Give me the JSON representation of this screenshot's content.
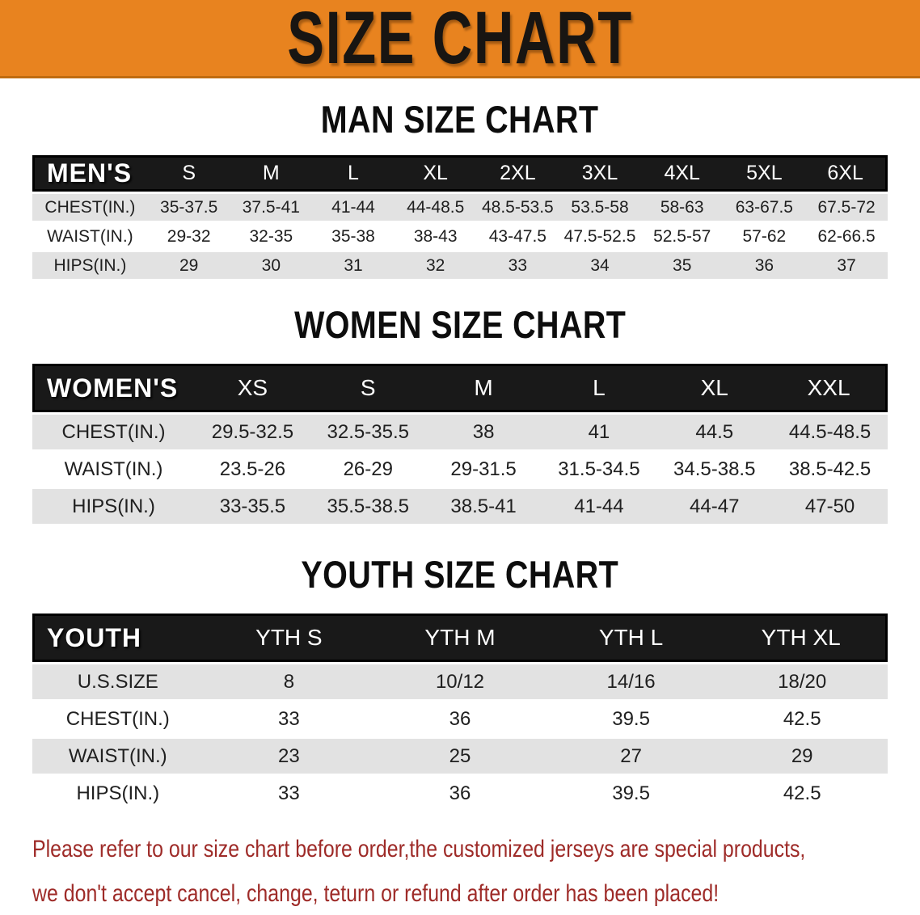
{
  "banner": {
    "title": "SIZE CHART",
    "bg_color": "#e8831f",
    "text_color": "#181512"
  },
  "tables": [
    {
      "id": "men",
      "title": "MAN SIZE CHART",
      "header_label": "MEN'S",
      "columns": [
        "S",
        "M",
        "L",
        "XL",
        "2XL",
        "3XL",
        "4XL",
        "5XL",
        "6XL"
      ],
      "rows": [
        {
          "label": "CHEST(IN.)",
          "values": [
            "35-37.5",
            "37.5-41",
            "41-44",
            "44-48.5",
            "48.5-53.5",
            "53.5-58",
            "58-63",
            "63-67.5",
            "67.5-72"
          ]
        },
        {
          "label": "WAIST(IN.)",
          "values": [
            "29-32",
            "32-35",
            "35-38",
            "38-43",
            "43-47.5",
            "47.5-52.5",
            "52.5-57",
            "57-62",
            "62-66.5"
          ]
        },
        {
          "label": "HIPS(IN.)",
          "values": [
            "29",
            "30",
            "31",
            "32",
            "33",
            "34",
            "35",
            "36",
            "37"
          ]
        }
      ]
    },
    {
      "id": "women",
      "title": "WOMEN SIZE CHART",
      "header_label": "WOMEN'S",
      "columns": [
        "XS",
        "S",
        "M",
        "L",
        "XL",
        "XXL"
      ],
      "rows": [
        {
          "label": "CHEST(IN.)",
          "values": [
            "29.5-32.5",
            "32.5-35.5",
            "38",
            "41",
            "44.5",
            "44.5-48.5"
          ]
        },
        {
          "label": "WAIST(IN.)",
          "values": [
            "23.5-26",
            "26-29",
            "29-31.5",
            "31.5-34.5",
            "34.5-38.5",
            "38.5-42.5"
          ]
        },
        {
          "label": "HIPS(IN.)",
          "values": [
            "33-35.5",
            "35.5-38.5",
            "38.5-41",
            "41-44",
            "44-47",
            "47-50"
          ]
        }
      ]
    },
    {
      "id": "youth",
      "title": "YOUTH SIZE CHART",
      "header_label": "YOUTH",
      "columns": [
        "YTH S",
        "YTH M",
        "YTH L",
        "YTH XL"
      ],
      "rows": [
        {
          "label": "U.S.SIZE",
          "values": [
            "8",
            "10/12",
            "14/16",
            "18/20"
          ]
        },
        {
          "label": "CHEST(IN.)",
          "values": [
            "33",
            "36",
            "39.5",
            "42.5"
          ]
        },
        {
          "label": "WAIST(IN.)",
          "values": [
            "23",
            "25",
            "27",
            "29"
          ]
        },
        {
          "label": "HIPS(IN.)",
          "values": [
            "33",
            "36",
            "39.5",
            "42.5"
          ]
        }
      ]
    }
  ],
  "disclaimer": {
    "line1": "Please refer to our size chart before order,the customized jerseys are special products,",
    "line2": "we don't accept cancel, change, teturn or refund after order has been placed!",
    "color": "#9e2b28"
  }
}
